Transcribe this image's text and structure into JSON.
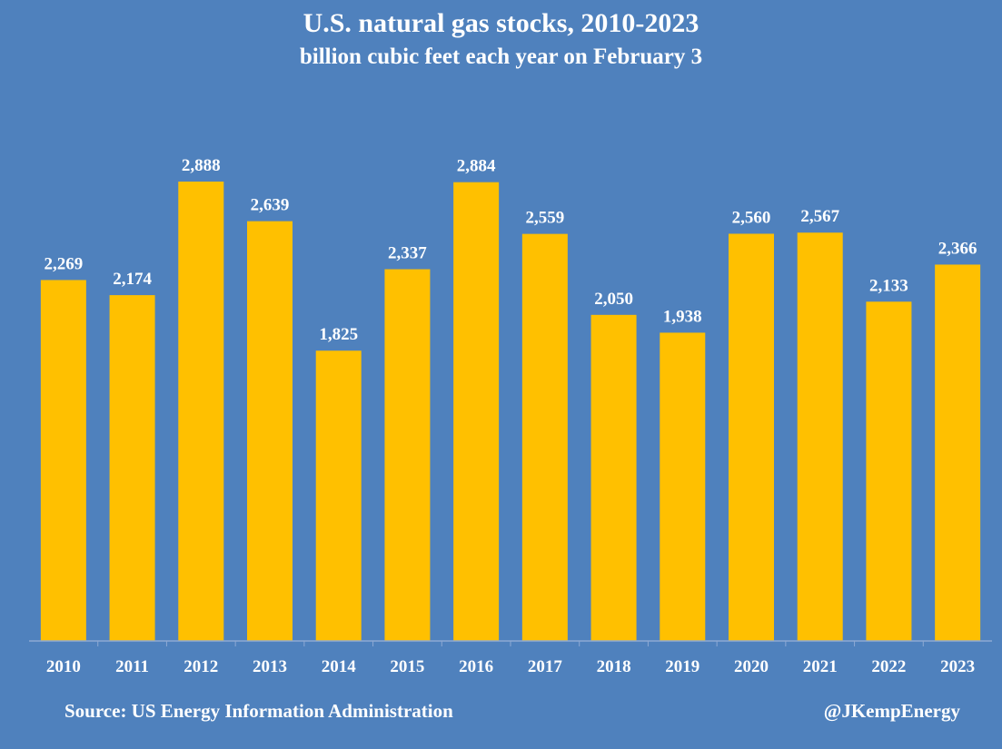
{
  "chart_data": {
    "type": "bar",
    "title": "U.S. natural gas stocks, 2010-2023",
    "subtitle": "billion cubic feet each year on February 3",
    "categories": [
      "2010",
      "2011",
      "2012",
      "2013",
      "2014",
      "2015",
      "2016",
      "2017",
      "2018",
      "2019",
      "2020",
      "2021",
      "2022",
      "2023"
    ],
    "values": [
      2269,
      2174,
      2888,
      2639,
      1825,
      2337,
      2884,
      2559,
      2050,
      1938,
      2560,
      2567,
      2133,
      2366
    ],
    "data_labels": [
      "2,269",
      "2,174",
      "2,888",
      "2,639",
      "1,825",
      "2,337",
      "2,884",
      "2,559",
      "2,050",
      "1,938",
      "2,560",
      "2,567",
      "2,133",
      "2,366"
    ],
    "ylim": [
      0,
      3000
    ],
    "grid": false,
    "legend": "none",
    "bar_color": "#ffc000",
    "background_color": "#4f81bd"
  },
  "footer": {
    "source": "Source: US Energy Information Administration",
    "handle": "@JKempEnergy"
  }
}
